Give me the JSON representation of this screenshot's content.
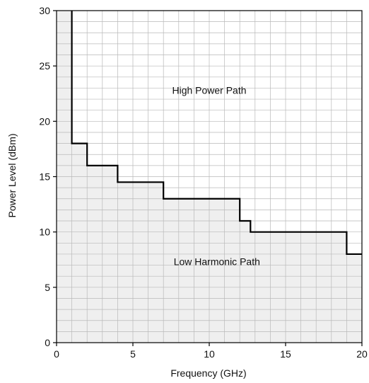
{
  "chart_data": {
    "type": "line",
    "title": "",
    "xlabel": "Frequency (GHz)",
    "ylabel": "Power Level (dBm)",
    "xlim": [
      0,
      20
    ],
    "ylim": [
      0,
      30
    ],
    "xticks": [
      0,
      5,
      10,
      15,
      20
    ],
    "yticks": [
      0,
      5,
      10,
      15,
      20,
      25,
      30
    ],
    "grid": true,
    "minor_grid_step": {
      "x": 1,
      "y": 1
    },
    "series": [
      {
        "step": "post",
        "x": [
          1,
          1,
          2,
          2,
          4,
          4,
          7,
          7,
          12,
          12,
          12.7,
          12.7,
          19,
          19,
          20
        ],
        "y": [
          30,
          18,
          18,
          16,
          16,
          14.5,
          14.5,
          13,
          13,
          11,
          11,
          10,
          10,
          8,
          8
        ]
      }
    ],
    "annotations": [
      {
        "text": "High Power Path",
        "x": 10,
        "y": 22.5
      },
      {
        "text": "Low Harmonic Path",
        "x": 10.5,
        "y": 7
      }
    ],
    "shaded_region": "below-boundary",
    "fill_color": "#efefef",
    "line_color": "#000000"
  }
}
